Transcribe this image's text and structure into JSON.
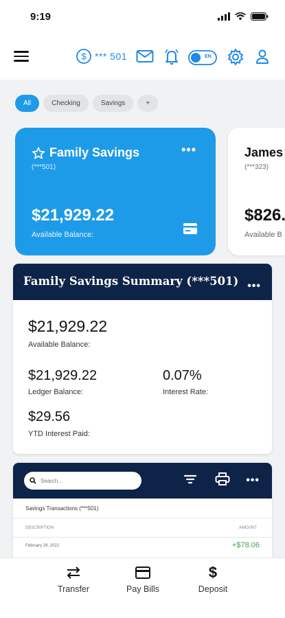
{
  "status": {
    "time": "9:19"
  },
  "nav": {
    "account_mask": "*** 501",
    "toggle_label": "EN"
  },
  "filters": [
    "All",
    "Checking",
    "Savings",
    "+"
  ],
  "accounts": [
    {
      "name": "Family Savings",
      "number": "(***501)",
      "balance": "$21,929.22",
      "caption": "Available Balance:"
    },
    {
      "name": "James",
      "number": "(***323)",
      "balance": "$826.",
      "caption": "Available B"
    }
  ],
  "summary": {
    "title": "Family Savings Summary (***501)",
    "available_balance": "$21,929.22",
    "available_label": "Available Balance:",
    "ledger_balance": "$21,929.22",
    "ledger_label": "Ledger Balance:",
    "interest_rate": "0.07%",
    "interest_label": "Interest Rate:",
    "ytd_interest": "$29.56",
    "ytd_label": "YTD Interest Paid:"
  },
  "transactions": {
    "search_placeholder": "Search...",
    "subtitle": "Savings Transactions (***501)",
    "col_description": "DESCRIPTION",
    "col_amount": "AMOUNT",
    "rows": [
      {
        "date": "February 29, 2022",
        "amount": "+$78.06"
      }
    ]
  },
  "bottom_nav": [
    {
      "label": "Transfer",
      "icon": "transfer-icon"
    },
    {
      "label": "Pay Bills",
      "icon": "card-icon"
    },
    {
      "label": "Deposit",
      "icon": "dollar-icon"
    }
  ],
  "colors": {
    "accent": "#1e9be8",
    "navy": "#0e2348",
    "positive": "#3aa655"
  }
}
